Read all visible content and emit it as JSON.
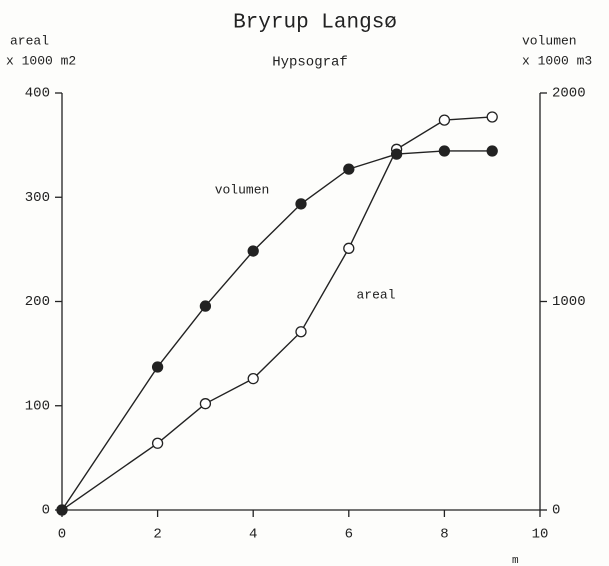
{
  "chart_data": {
    "type": "line",
    "title": "Bryrup Langsø",
    "subtitle": "Hypsograf",
    "ylabel": "areal",
    "ylabel_unit": "x 1000 m2",
    "y2label": "volumen",
    "y2label_unit": "x 1000 m3",
    "xlabel": "m",
    "x": [
      0,
      2,
      3,
      4,
      5,
      6,
      7,
      8,
      9
    ],
    "series": [
      {
        "name": "areal",
        "color": "#222222",
        "filled": false,
        "axis": "y",
        "values": [
          0,
          64,
          102,
          126,
          171,
          251,
          346,
          374,
          377
        ]
      },
      {
        "name": "volumen",
        "color": "#222222",
        "filled": true,
        "axis": "y2",
        "values": [
          0,
          686,
          978,
          1242,
          1468,
          1635,
          1707,
          1722,
          1722
        ]
      }
    ],
    "xlim": [
      0,
      10
    ],
    "xticks": [
      0,
      2,
      4,
      6,
      8,
      10
    ],
    "ylim": [
      0,
      400
    ],
    "yticks": [
      0,
      100,
      200,
      300,
      400
    ],
    "y2lim": [
      0,
      2000
    ],
    "y2ticks": [
      0,
      1000,
      2000
    ]
  }
}
